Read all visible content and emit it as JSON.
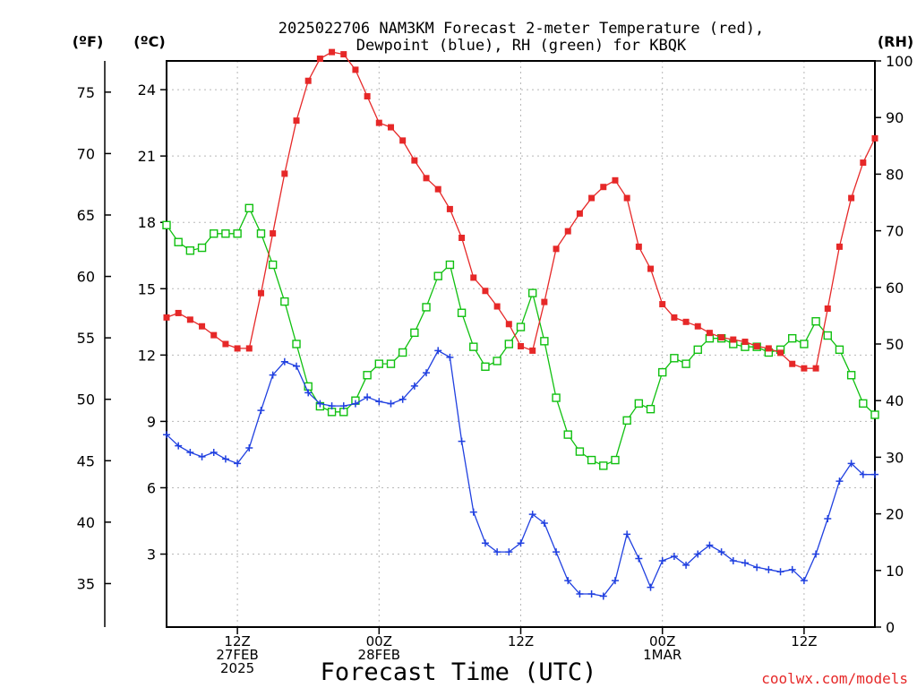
{
  "chart_data": {
    "type": "line",
    "title_line1": "2025022706 NAM3KM Forecast 2-meter Temperature (red),",
    "title_line2": "Dewpoint (blue), RH (green) for KBQK",
    "xlabel": "Forecast Time (UTC)",
    "left_outer_unit": "(ºF)",
    "left_inner_unit": "(ºC)",
    "right_unit": "(RH)",
    "credit": "coolwx.com/models",
    "x_range_hours": [
      0,
      60
    ],
    "x_ticks": [
      {
        "hour": 6,
        "lines": [
          "12Z",
          "27FEB",
          "2025"
        ]
      },
      {
        "hour": 18,
        "lines": [
          "00Z",
          "28FEB"
        ]
      },
      {
        "hour": 30,
        "lines": [
          "12Z"
        ]
      },
      {
        "hour": 42,
        "lines": [
          "00Z",
          "1MAR"
        ]
      },
      {
        "hour": 54,
        "lines": [
          "12Z"
        ]
      }
    ],
    "celsius_range": [
      -0.3,
      25.3
    ],
    "celsius_ticks": [
      3,
      6,
      9,
      12,
      15,
      18,
      21,
      24
    ],
    "fahrenheit_ticks": [
      35,
      40,
      45,
      50,
      55,
      60,
      65,
      70,
      75
    ],
    "rh_range": [
      0,
      100
    ],
    "rh_ticks": [
      0,
      10,
      20,
      30,
      40,
      50,
      60,
      70,
      80,
      90,
      100
    ],
    "grid": true,
    "colors": {
      "temperature": "#e62828",
      "dewpoint": "#2040e0",
      "rh": "#10c010"
    },
    "series": [
      {
        "key": "temperature",
        "marker": "filled-square",
        "values": [
          13.7,
          13.9,
          13.6,
          13.3,
          12.9,
          12.5,
          12.3,
          12.3,
          14.8,
          17.5,
          20.2,
          22.6,
          24.4,
          25.4,
          25.7,
          25.6,
          24.9,
          23.7,
          22.5,
          22.3,
          21.7,
          20.8,
          20.0,
          19.5,
          18.6,
          17.3,
          15.5,
          14.9,
          14.2,
          13.4,
          12.4,
          12.2,
          14.4,
          16.8,
          17.6,
          18.4,
          19.1,
          19.6,
          19.9,
          19.1,
          16.9,
          15.9,
          14.3,
          13.7,
          13.5,
          13.3,
          13.0,
          12.8,
          12.7,
          12.6,
          12.4,
          12.3,
          12.1,
          11.6,
          11.4,
          11.4,
          14.1,
          16.9,
          19.1,
          20.7,
          21.8
        ]
      },
      {
        "key": "dewpoint",
        "marker": "plus",
        "values": [
          8.4,
          7.9,
          7.6,
          7.4,
          7.6,
          7.3,
          7.1,
          7.8,
          9.5,
          11.1,
          11.7,
          11.5,
          10.3,
          9.8,
          9.7,
          9.7,
          9.8,
          10.1,
          9.9,
          9.8,
          10.0,
          10.6,
          11.2,
          12.2,
          11.9,
          8.1,
          4.9,
          3.5,
          3.1,
          3.1,
          3.5,
          4.8,
          4.4,
          3.1,
          1.8,
          1.2,
          1.2,
          1.1,
          1.8,
          3.9,
          2.8,
          1.5,
          2.7,
          2.9,
          2.5,
          3.0,
          3.4,
          3.1,
          2.7,
          2.6,
          2.4,
          2.3,
          2.2,
          2.3,
          1.8,
          3.0,
          4.6,
          6.3,
          7.1,
          6.6,
          6.6
        ]
      },
      {
        "key": "rh",
        "marker": "open-square",
        "values": [
          71,
          68,
          66.5,
          67,
          69.5,
          69.5,
          69.5,
          74,
          69.5,
          64,
          57.5,
          50,
          42.5,
          39,
          38,
          38,
          40,
          44.5,
          46.5,
          46.5,
          48.5,
          52,
          56.5,
          62,
          64,
          55.5,
          49.5,
          46,
          47,
          50,
          53,
          59,
          50.5,
          40.5,
          34,
          31,
          29.5,
          28.5,
          29.5,
          36.5,
          39.5,
          38.5,
          45,
          47.5,
          46.5,
          49,
          51,
          51,
          50,
          49.5,
          49.5,
          48.5,
          49,
          51,
          50,
          54,
          51.5,
          49,
          44.5,
          39.5,
          37.5
        ]
      }
    ]
  }
}
